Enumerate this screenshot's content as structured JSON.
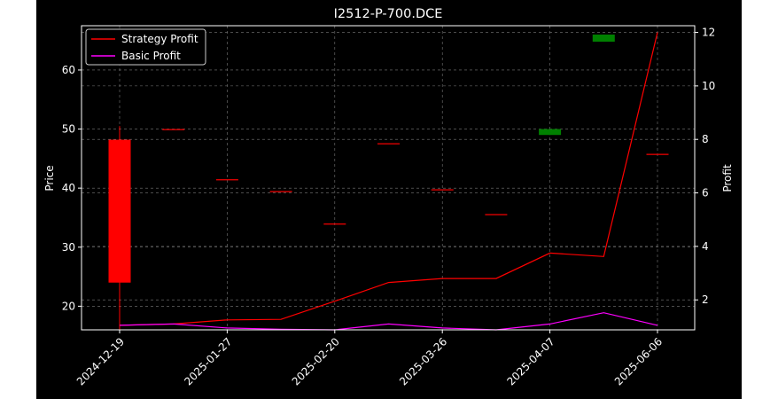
{
  "chart_data": {
    "type": "candlestick+line",
    "title": "I2512-P-700.DCE",
    "left_axis": {
      "label": "Price",
      "ylim": [
        16,
        67.5
      ],
      "ticks": [
        20,
        30,
        40,
        50,
        60
      ]
    },
    "right_axis": {
      "label": "Profit",
      "ylim": [
        0.88,
        12.25
      ],
      "ticks": [
        2,
        4,
        6,
        8,
        10,
        12
      ]
    },
    "x_tick_labels": [
      "2024-12-19",
      "2025-01-27",
      "2025-02-20",
      "2025-03-26",
      "2025-04-07",
      "2025-06-06"
    ],
    "candles": [
      {
        "i": 0,
        "open": 48.2,
        "close": 24.0,
        "high": 50.5,
        "low": 16.0,
        "color": "#ff0000"
      },
      {
        "i": 1,
        "open": 50.0,
        "close": 50.0,
        "high": 50.0,
        "low": 50.0,
        "color": "#ff0000"
      },
      {
        "i": 2,
        "open": 41.5,
        "close": 41.5,
        "high": 41.5,
        "low": 41.5,
        "color": "#ff0000"
      },
      {
        "i": 3,
        "open": 39.5,
        "close": 39.5,
        "high": 39.5,
        "low": 39.5,
        "color": "#ff0000"
      },
      {
        "i": 4,
        "open": 34.0,
        "close": 34.0,
        "high": 34.0,
        "low": 34.0,
        "color": "#ff0000"
      },
      {
        "i": 5,
        "open": 47.6,
        "close": 47.6,
        "high": 47.6,
        "low": 47.6,
        "color": "#ff0000"
      },
      {
        "i": 6,
        "open": 39.8,
        "close": 39.8,
        "high": 39.8,
        "low": 39.8,
        "color": "#ff0000"
      },
      {
        "i": 7,
        "open": 35.6,
        "close": 35.6,
        "high": 35.6,
        "low": 35.6,
        "color": "#ff0000"
      },
      {
        "i": 8,
        "open": 49.0,
        "close": 50.0,
        "high": 50.0,
        "low": 49.0,
        "color": "#008000"
      },
      {
        "i": 9,
        "open": 64.8,
        "close": 66.0,
        "high": 66.0,
        "low": 64.8,
        "color": "#008000"
      },
      {
        "i": 10,
        "open": 45.8,
        "close": 45.8,
        "high": 45.8,
        "low": 45.8,
        "color": "#ff0000"
      }
    ],
    "series": [
      {
        "name": "Strategy Profit",
        "color": "#ff0000",
        "axis": "right",
        "values": [
          1.05,
          1.1,
          1.25,
          1.27,
          1.95,
          2.65,
          2.8,
          2.8,
          3.75,
          3.62,
          12.0
        ]
      },
      {
        "name": "Basic Profit",
        "color": "#ff00ff",
        "axis": "right",
        "values": [
          1.05,
          1.1,
          0.95,
          0.9,
          0.88,
          1.1,
          0.95,
          0.88,
          1.1,
          1.52,
          1.05
        ]
      }
    ],
    "x_tick_index": [
      0,
      2,
      4,
      6,
      8,
      10
    ],
    "grid": true,
    "legend": "top-left"
  }
}
